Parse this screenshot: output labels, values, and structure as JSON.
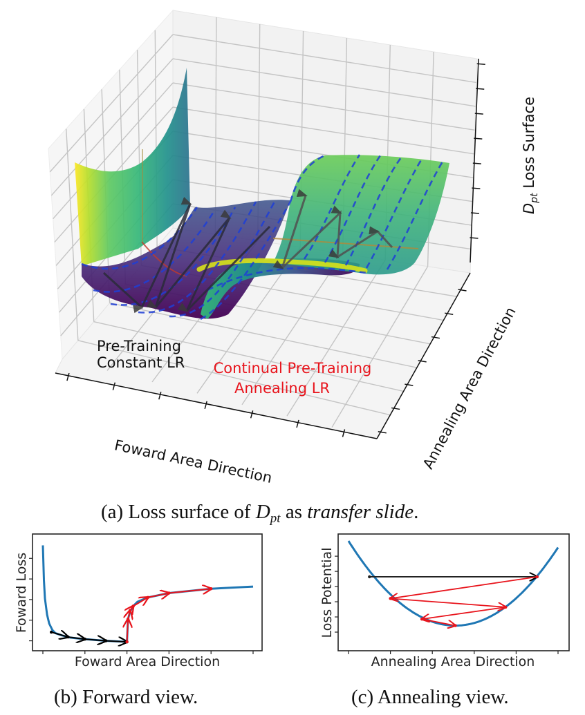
{
  "figure": {
    "captions": {
      "a_prefix": "(a) Loss surface of ",
      "a_math": "D",
      "a_math_sub": "pt",
      "a_mid": " as ",
      "a_italic": "transfer slide",
      "a_suffix": ".",
      "b": "(b) Forward view.",
      "c": "(c) Annealing view."
    }
  },
  "chart_data": [
    {
      "id": "a",
      "type": "surface3d",
      "title": "",
      "xlabel": "Foward Area Direction",
      "ylabel": "Annealing Area Direction",
      "zlabel_math": "D",
      "zlabel_sub": "pt",
      "zlabel_text": " Loss Surface",
      "x_ticks_count": 7,
      "y_ticks_count": 7,
      "z_ticks_count": 8,
      "tick_labels_shown": false,
      "grid": true,
      "colormap": "viridis",
      "colors": {
        "contour_dashed": "#1f3fd6",
        "trajectory": "#3a3a3a",
        "pretrain_text": "#111111",
        "annealing_text": "#e8141c",
        "valley_line": "#c0392b",
        "ridge_line": "#b08a3a"
      },
      "annotations": [
        {
          "text": [
            "Pre-Training",
            "Constant LR"
          ],
          "color": "#111111"
        },
        {
          "text": [
            "Continual Pre-Training",
            "Annealing LR"
          ],
          "color": "#e8141c"
        }
      ],
      "description": "Low valley (pre-training region) in the forward direction followed by a step up to a higher plateau (continual pre-training region); zigzag trajectories across the annealing direction in both regions."
    },
    {
      "id": "b",
      "type": "line",
      "title": "",
      "xlabel": "Foward Area Direction",
      "ylabel": "Foward Loss",
      "xlim": [
        0,
        1
      ],
      "ylim": [
        0,
        1
      ],
      "x_ticks": [
        0.0,
        0.2,
        0.4,
        0.6,
        0.8,
        1.0
      ],
      "y_ticks": [
        0.06,
        0.25,
        0.44,
        0.63,
        0.82
      ],
      "tick_labels_shown": false,
      "series": [
        {
          "name": "loss curve",
          "color": "#1f77b4",
          "x": [
            0.0,
            0.005,
            0.01,
            0.02,
            0.03,
            0.045,
            0.06,
            0.09,
            0.13,
            0.2,
            0.3,
            0.4,
            0.4,
            0.405,
            0.415,
            0.43,
            0.45,
            0.5,
            0.6,
            0.7,
            0.8,
            0.9,
            1.0
          ],
          "y": [
            0.94,
            0.62,
            0.45,
            0.3,
            0.22,
            0.16,
            0.13,
            0.11,
            0.09,
            0.075,
            0.06,
            0.05,
            0.05,
            0.26,
            0.33,
            0.38,
            0.42,
            0.46,
            0.5,
            0.52,
            0.54,
            0.55,
            0.56
          ]
        },
        {
          "name": "pre-training steps",
          "color": "#000000",
          "points_x": [
            0.04,
            0.12,
            0.2,
            0.3,
            0.4
          ],
          "points_y": [
            0.14,
            0.095,
            0.075,
            0.06,
            0.05
          ]
        },
        {
          "name": "continual pre-training steps",
          "color": "#e8141c",
          "points_x": [
            0.4,
            0.405,
            0.415,
            0.43,
            0.5,
            0.6,
            0.8
          ],
          "points_y": [
            0.05,
            0.26,
            0.34,
            0.38,
            0.46,
            0.5,
            0.54
          ]
        }
      ]
    },
    {
      "id": "c",
      "type": "line",
      "title": "",
      "xlabel": "Annealing Area Direction",
      "ylabel": "Loss Potential",
      "xlim": [
        0,
        1
      ],
      "ylim": [
        0,
        1
      ],
      "x_ticks": [
        0.0,
        0.2,
        0.4,
        0.6,
        0.8,
        1.0
      ],
      "y_ticks": [
        0.14,
        0.28,
        0.42,
        0.56,
        0.7,
        0.84
      ],
      "tick_labels_shown": false,
      "series": [
        {
          "name": "loss potential parabola",
          "color": "#1f77b4",
          "equation": "y = 0.20 + 3.0*(x-0.51)^2",
          "x_range": [
            0.0,
            1.0
          ]
        },
        {
          "name": "initial step",
          "color": "#000000",
          "points_x": [
            0.1,
            0.9
          ],
          "points_y": [
            0.65,
            0.65
          ]
        },
        {
          "name": "annealing steps",
          "color": "#e8141c",
          "points_x": [
            0.9,
            0.2,
            0.75,
            0.35,
            0.51
          ],
          "points_y": [
            0.65,
            0.45,
            0.37,
            0.26,
            0.2
          ]
        }
      ]
    }
  ]
}
